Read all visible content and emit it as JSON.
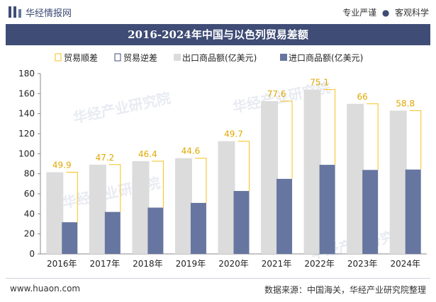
{
  "header": {
    "brand": "华经情报网",
    "slogan_left": "专业严谨",
    "slogan_right": "客观科学"
  },
  "footer": {
    "website": "www.huaon.com",
    "source": "数据来源：中国海关，华经产业研究院整理"
  },
  "watermark": "华经产业研究院",
  "colors": {
    "title_bg": "#3f4c75",
    "export_bar": "#dcdcdc",
    "import_bar": "#6676a0",
    "surplus_line": "#f5c21b",
    "deficit_line": "#3f4c75"
  },
  "chart_data": {
    "type": "bar",
    "title": "2016-2024年中国与以色列贸易差额",
    "categories": [
      "2016年",
      "2017年",
      "2018年",
      "2019年",
      "2020年",
      "2021年",
      "2022年",
      "2023年",
      "2024年"
    ],
    "legend": [
      "贸易顺差",
      "贸易逆差",
      "出口商品额(亿美元)",
      "进口商品额(亿美元)"
    ],
    "legend_position": "top",
    "ylim": [
      0,
      180
    ],
    "yticks": [
      0,
      20,
      40,
      60,
      80,
      100,
      120,
      140,
      160,
      180
    ],
    "series": [
      {
        "name": "出口商品额(亿美元)",
        "values": [
          81.5,
          89.1,
          92.6,
          95.5,
          112.5,
          152.5,
          164,
          149.8,
          143
        ]
      },
      {
        "name": "进口商品额(亿美元)",
        "values": [
          31.6,
          41.9,
          46.2,
          50.9,
          62.8,
          74.9,
          88.9,
          83.8,
          84.2
        ]
      },
      {
        "name": "贸易顺差",
        "values": [
          49.9,
          47.2,
          46.4,
          44.6,
          49.7,
          77.6,
          75.1,
          66,
          58.8
        ]
      }
    ]
  }
}
